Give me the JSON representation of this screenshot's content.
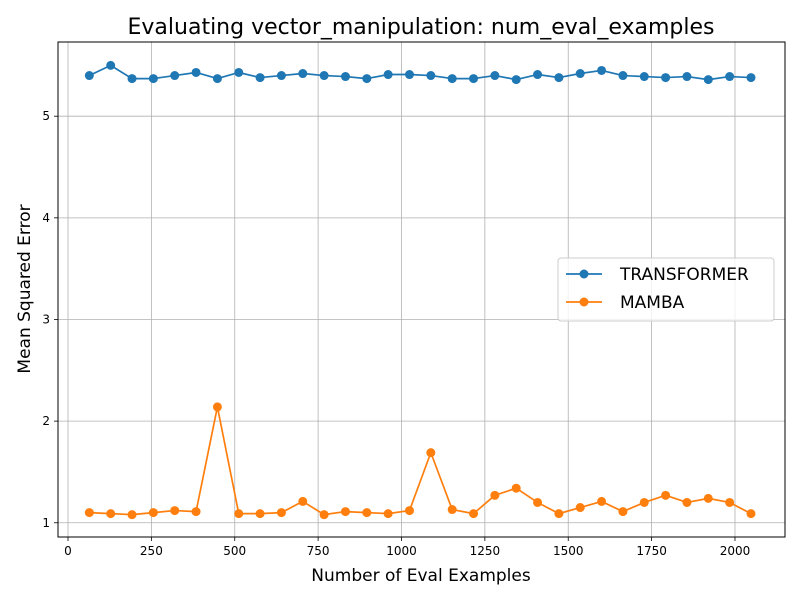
{
  "chart_data": {
    "type": "line",
    "title": "Evaluating vector_manipulation: num_eval_examples",
    "xlabel": "Number of Eval Examples",
    "ylabel": "Mean Squared Error",
    "xlim": [
      -30,
      2150
    ],
    "ylim": [
      0.86,
      5.73
    ],
    "xticks": [
      0,
      250,
      500,
      750,
      1000,
      1250,
      1500,
      1750,
      2000
    ],
    "yticks": [
      1,
      2,
      3,
      4,
      5
    ],
    "grid": true,
    "legend_position": "center-right",
    "x": [
      64,
      128,
      192,
      256,
      320,
      384,
      448,
      512,
      576,
      640,
      704,
      768,
      832,
      896,
      960,
      1024,
      1088,
      1152,
      1216,
      1280,
      1344,
      1408,
      1472,
      1536,
      1600,
      1664,
      1728,
      1792,
      1856,
      1920,
      1984,
      2048
    ],
    "series": [
      {
        "name": "TRANSFORMER",
        "color": "#1f77b4",
        "values": [
          5.4,
          5.5,
          5.37,
          5.37,
          5.4,
          5.43,
          5.37,
          5.43,
          5.38,
          5.4,
          5.42,
          5.4,
          5.39,
          5.37,
          5.41,
          5.41,
          5.4,
          5.37,
          5.37,
          5.4,
          5.36,
          5.41,
          5.38,
          5.42,
          5.45,
          5.4,
          5.39,
          5.38,
          5.39,
          5.36,
          5.39,
          5.38
        ]
      },
      {
        "name": "MAMBA",
        "color": "#ff7f0e",
        "values": [
          1.1,
          1.09,
          1.08,
          1.1,
          1.12,
          1.11,
          2.14,
          1.09,
          1.09,
          1.1,
          1.21,
          1.08,
          1.11,
          1.1,
          1.09,
          1.12,
          1.69,
          1.13,
          1.09,
          1.27,
          1.34,
          1.2,
          1.09,
          1.15,
          1.21,
          1.11,
          1.2,
          1.27,
          1.2,
          1.24,
          1.2,
          1.09
        ]
      }
    ]
  }
}
